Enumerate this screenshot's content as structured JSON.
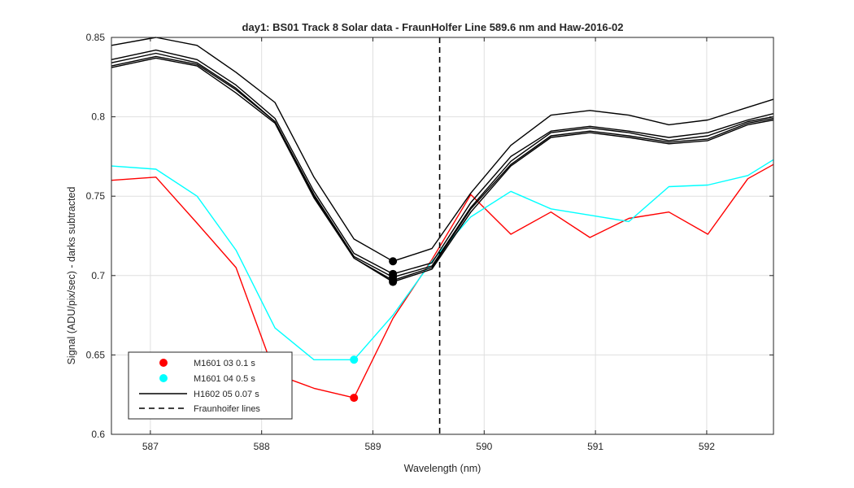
{
  "chart_data": {
    "type": "line",
    "title": "day1: BS01  Track 8 Solar data - FraunHolfer Line 589.6 nm and Haw-2016-02",
    "xlabel": "Wavelength (nm)",
    "ylabel": "Signal (ADU/pix/sec) - darks subtracted",
    "xlim": [
      586.65,
      592.6
    ],
    "ylim": [
      0.6,
      0.85
    ],
    "xticks": [
      587,
      588,
      589,
      590,
      591,
      592
    ],
    "yticks": [
      0.6,
      0.65,
      0.7,
      0.75,
      0.8,
      0.85
    ],
    "xtick_labels": [
      "587",
      "588",
      "589",
      "590",
      "591",
      "592"
    ],
    "ytick_labels": [
      "0.6",
      "0.65",
      "0.7",
      "0.75",
      "0.8",
      "0.85"
    ],
    "grid": true,
    "legend_position": "bottom-left",
    "x": [
      586.65,
      587.05,
      587.42,
      587.77,
      588.12,
      588.47,
      588.83,
      589.18,
      589.53,
      589.88,
      590.24,
      590.6,
      590.95,
      591.3,
      591.66,
      592.01,
      592.37,
      592.6
    ],
    "series": [
      {
        "name": "M1601 03 0.1 s",
        "color": "#ff0000",
        "marker_x": 588.83,
        "marker_y": 0.623,
        "values": [
          0.76,
          0.762,
          0.733,
          0.705,
          0.638,
          0.629,
          0.623,
          0.673,
          0.71,
          0.751,
          0.726,
          0.74,
          0.724,
          0.736,
          0.74,
          0.726,
          0.761,
          0.77
        ]
      },
      {
        "name": "M1601 04 0.5 s",
        "color": "#00ffff",
        "marker_x": 588.83,
        "marker_y": 0.647,
        "values": [
          0.769,
          0.767,
          0.75,
          0.716,
          0.667,
          0.647,
          0.647,
          0.675,
          0.709,
          0.737,
          0.753,
          0.742,
          0.738,
          0.734,
          0.756,
          0.757,
          0.763,
          0.773
        ]
      },
      {
        "name": "H1602 05 0.07 s",
        "color": "#000000",
        "marker_x": 589.18,
        "marker_y": 0.709,
        "values": [
          0.845,
          0.85,
          0.845,
          0.828,
          0.809,
          0.762,
          0.723,
          0.709,
          0.717,
          0.752,
          0.782,
          0.801,
          0.804,
          0.801,
          0.795,
          0.798,
          0.806,
          0.811
        ]
      },
      {
        "color": "#000000",
        "marker_x": 589.18,
        "marker_y": 0.701,
        "values": [
          0.836,
          0.842,
          0.836,
          0.82,
          0.799,
          0.753,
          0.714,
          0.701,
          0.708,
          0.746,
          0.775,
          0.791,
          0.794,
          0.791,
          0.787,
          0.79,
          0.798,
          0.802
        ]
      },
      {
        "color": "#000000",
        "marker_x": 589.18,
        "marker_y": 0.699,
        "values": [
          0.834,
          0.84,
          0.834,
          0.818,
          0.797,
          0.751,
          0.712,
          0.699,
          0.706,
          0.743,
          0.772,
          0.79,
          0.793,
          0.79,
          0.785,
          0.788,
          0.797,
          0.8
        ]
      },
      {
        "color": "#000000",
        "marker_x": 589.18,
        "marker_y": 0.697,
        "values": [
          0.832,
          0.838,
          0.833,
          0.817,
          0.797,
          0.75,
          0.711,
          0.697,
          0.705,
          0.742,
          0.77,
          0.788,
          0.791,
          0.788,
          0.784,
          0.786,
          0.796,
          0.799
        ]
      },
      {
        "color": "#000000",
        "marker_x": 589.18,
        "marker_y": 0.696,
        "values": [
          0.831,
          0.837,
          0.832,
          0.815,
          0.796,
          0.749,
          0.711,
          0.696,
          0.704,
          0.74,
          0.769,
          0.787,
          0.79,
          0.787,
          0.783,
          0.785,
          0.795,
          0.798
        ]
      }
    ],
    "fraunhofer_line_x": 589.6,
    "legend": [
      {
        "label": "M1601 03 0.1 s",
        "style": "marker",
        "color": "#ff0000"
      },
      {
        "label": "M1601 04 0.5 s",
        "style": "marker",
        "color": "#00ffff"
      },
      {
        "label": "H1602 05 0.07 s",
        "style": "solid",
        "color": "#000000"
      },
      {
        "label": "Fraunhoifer lines",
        "style": "dashed",
        "color": "#000000"
      }
    ]
  }
}
